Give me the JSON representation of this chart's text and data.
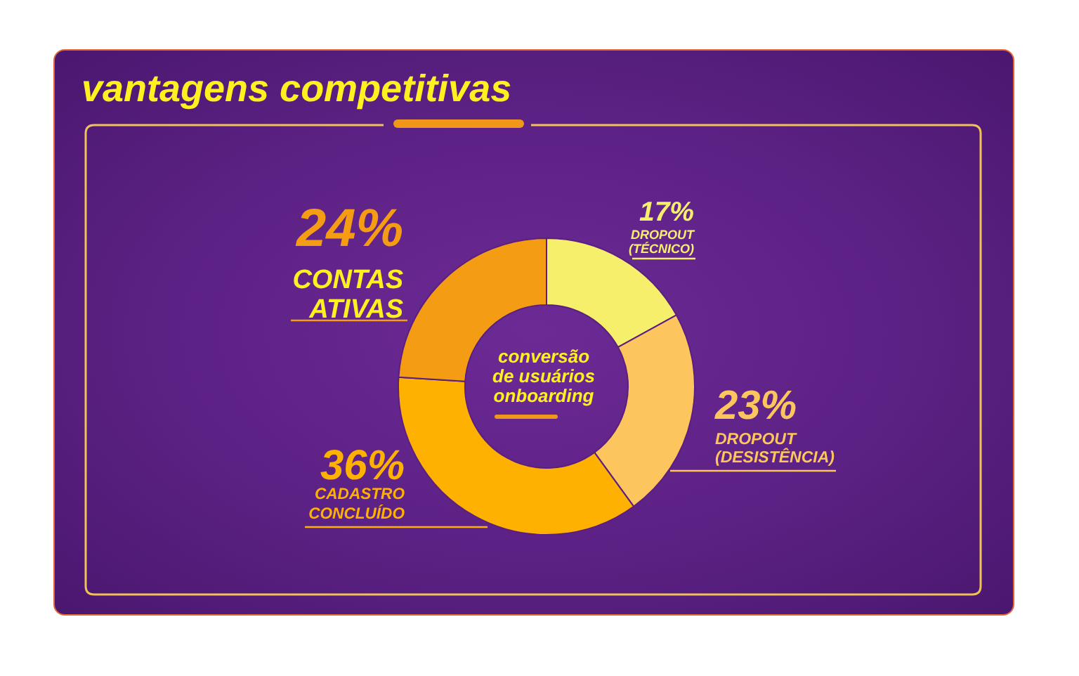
{
  "chart_data": {
    "type": "donut",
    "title": "vantagens competitivas",
    "categories": [
      "DROPOUT (TÉCNICO)",
      "DROPOUT (DESISTÊNCIA)",
      "CADASTRO CONCLUÍDO",
      "CONTAS ATIVAS"
    ],
    "values": [
      17,
      23,
      36,
      24
    ],
    "colors": [
      "#f6ef6c",
      "#fdc55e",
      "#ffb102",
      "#f39c14"
    ],
    "value_labels": [
      "17%",
      "23%",
      "36%",
      "24%"
    ],
    "annotations": [
      "conversão de usuários onboarding"
    ]
  }
}
